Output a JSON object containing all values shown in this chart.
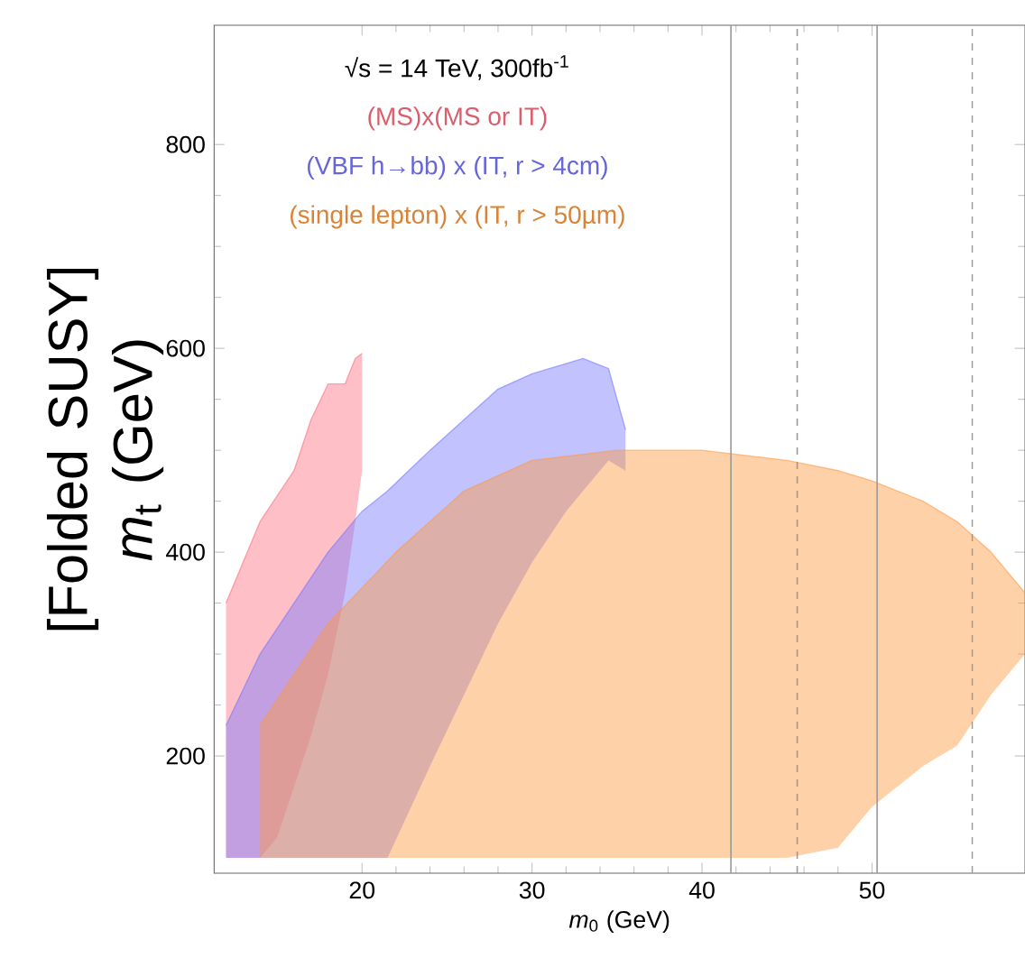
{
  "chart_data": {
    "type": "line",
    "xlabel": "*m*$_{0}$ (GeV)",
    "ylabel": "[Folded SUSY] *m*$_{t}$ (GeV)",
    "annotations": [
      "√s = 14 TeV, 300fb$^{-1}$"
    ],
    "xlim": [
      11.3,
      59
    ],
    "ylim": [
      85,
      917
    ],
    "xticks": [
      20,
      30,
      40,
      50
    ],
    "yticks": [
      200,
      400,
      600,
      800
    ],
    "legend": "top",
    "series": [
      {
        "name": "(MS)x(MS or IT)",
        "color": "#ff7080",
        "x": [
          12,
          13,
          14,
          15,
          16,
          17,
          18,
          19,
          19.6,
          20
        ],
        "values": [
          350,
          390,
          430,
          455,
          480,
          530,
          565,
          565,
          590,
          595
        ],
        "upper": [
          350,
          390,
          430,
          455,
          480,
          530,
          565,
          565,
          590,
          595
        ],
        "lower": [
          100,
          100,
          100,
          120,
          170,
          220,
          280,
          360,
          430,
          480
        ]
      },
      {
        "name": "(VBF h→bb) x (IT, r > 4cm)",
        "color": "#7878ff",
        "x": [
          12,
          14,
          16,
          18,
          20,
          21.5,
          24,
          26,
          28,
          30,
          32,
          33,
          34.5,
          35.5
        ],
        "values": [
          230,
          300,
          350,
          400,
          440,
          460,
          500,
          530,
          560,
          575,
          585,
          590,
          580,
          520
        ],
        "upper": [
          230,
          300,
          350,
          400,
          440,
          460,
          500,
          530,
          560,
          575,
          585,
          590,
          580,
          520
        ],
        "lower": [
          100,
          100,
          100,
          100,
          100,
          100,
          190,
          260,
          330,
          390,
          440,
          460,
          490,
          480
        ]
      },
      {
        "name": "(single lepton) x (IT, r > 50µm)",
        "color": "#ff9a40",
        "x": [
          14,
          18,
          22,
          26,
          30,
          35,
          40,
          45,
          48,
          50,
          53,
          55,
          57,
          59
        ],
        "values": [
          230,
          330,
          400,
          460,
          490,
          500,
          500,
          490,
          480,
          470,
          450,
          430,
          400,
          360
        ],
        "upper": [
          230,
          330,
          400,
          460,
          490,
          500,
          500,
          490,
          480,
          470,
          450,
          430,
          400,
          360
        ],
        "lower": [
          100,
          100,
          100,
          100,
          100,
          100,
          100,
          100,
          110,
          150,
          190,
          210,
          260,
          300
        ]
      }
    ],
    "ref_lines": [
      {
        "axis": "x",
        "value": 41.7,
        "color": "#999999",
        "line_style": "solid"
      },
      {
        "axis": "x",
        "value": 45.6,
        "color": "#999999",
        "line_style": "dashed"
      },
      {
        "axis": "x",
        "value": 50.3,
        "color": "#999999",
        "line_style": "solid"
      },
      {
        "axis": "x",
        "value": 55.9,
        "color": "#999999",
        "line_style": "dashed"
      }
    ]
  }
}
